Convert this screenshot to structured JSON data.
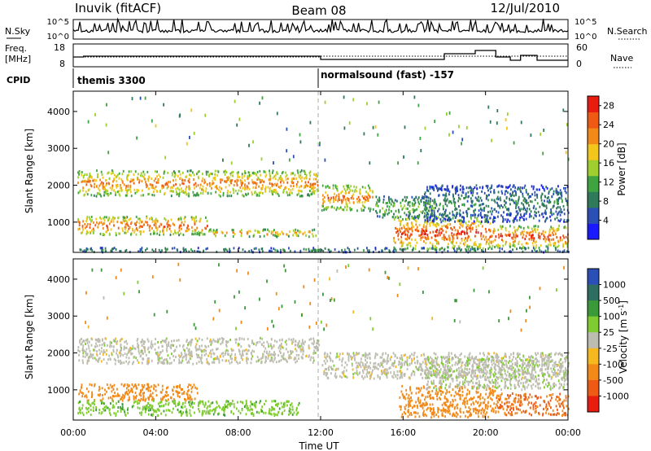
{
  "header": {
    "station": "Inuvik (fitACF)",
    "beam": "Beam 08",
    "date": "12/Jul/2010"
  },
  "noise_panel": {
    "left_label": "N.Sky",
    "left_ticks": [
      "10^5",
      "10^0"
    ],
    "right_label": "N.Search",
    "right_ticks": [
      "10^5",
      "10^0"
    ]
  },
  "freq_panel": {
    "left_label_1": "Freq.",
    "left_label_2": "[MHz]",
    "left_ticks": [
      "18",
      "8"
    ],
    "right_label": "Nave",
    "right_ticks": [
      "60",
      "0"
    ]
  },
  "cpid_panel": {
    "label": "CPID",
    "modes": [
      {
        "name": "themis 3300",
        "start_hour": 0
      },
      {
        "name": "normalsound (fast) -157",
        "start_hour": 12
      }
    ]
  },
  "colors": {
    "power_scale": [
      "#1a1aff",
      "#2a4fb5",
      "#2f7a5a",
      "#3fa33f",
      "#9ecf2e",
      "#f2c61a",
      "#f28a1a",
      "#ee5a14",
      "#e81d10"
    ],
    "velocity_scale": [
      "#2a50b8",
      "#2e6e60",
      "#3a9a3a",
      "#7fcc30",
      "#bcbcb0",
      "#f5b81e",
      "#f28a1a",
      "#ee5a14",
      "#e81d10"
    ]
  },
  "chart_data": [
    {
      "type": "heatmap",
      "name": "power",
      "xlabel": "Time UT",
      "ylabel": "Slant Range [km]",
      "xlim": [
        0,
        24
      ],
      "ylim": [
        180,
        4550
      ],
      "xticks": [
        "00:00",
        "04:00",
        "08:00",
        "12:00",
        "16:00",
        "20:00",
        "00:00"
      ],
      "yticks": [
        1000,
        2000,
        3000,
        4000
      ],
      "colorbar": {
        "label": "Power [dB]",
        "ticks": [
          4,
          8,
          12,
          16,
          20,
          24,
          28
        ],
        "range": [
          0,
          30
        ]
      },
      "bands": [
        {
          "t0": 0.2,
          "t1": 11.9,
          "r0": 1700,
          "r1": 2400,
          "value": 24
        },
        {
          "t0": 0.2,
          "t1": 6.5,
          "r0": 650,
          "r1": 1150,
          "value": 26
        },
        {
          "t0": 6.5,
          "t1": 11.8,
          "r0": 600,
          "r1": 800,
          "value": 22
        },
        {
          "t0": 12.0,
          "t1": 14.5,
          "r0": 1300,
          "r1": 2000,
          "value": 24
        },
        {
          "t0": 14.5,
          "t1": 17.5,
          "r0": 1100,
          "r1": 1700,
          "value": 14
        },
        {
          "t0": 15.5,
          "t1": 20.2,
          "r0": 250,
          "r1": 1150,
          "value": 27
        },
        {
          "t0": 20.2,
          "t1": 24.0,
          "r0": 300,
          "r1": 900,
          "value": 27
        },
        {
          "t0": 17.0,
          "t1": 24.0,
          "r0": 1000,
          "r1": 2000,
          "value": 9
        },
        {
          "t0": 0.2,
          "t1": 24.0,
          "r0": 180,
          "r1": 300,
          "value": 10
        }
      ]
    },
    {
      "type": "heatmap",
      "name": "velocity",
      "xlabel": "Time UT",
      "ylabel": "Slant Range [km]",
      "xlim": [
        0,
        24
      ],
      "ylim": [
        180,
        4550
      ],
      "xticks": [
        "00:00",
        "04:00",
        "08:00",
        "12:00",
        "16:00",
        "20:00",
        "00:00"
      ],
      "yticks": [
        1000,
        2000,
        3000,
        4000
      ],
      "colorbar": {
        "label": "Velocity [m s^-1]",
        "ticks": [
          "1000",
          "500",
          "100",
          "25",
          "-25",
          "-100",
          "-500",
          "-1000"
        ]
      },
      "bands": [
        {
          "t0": 0.2,
          "t1": 11.9,
          "r0": 1700,
          "r1": 2400,
          "value": 0
        },
        {
          "t0": 0.2,
          "t1": 6.0,
          "r0": 700,
          "r1": 1150,
          "value": -300
        },
        {
          "t0": 0.2,
          "t1": 11.0,
          "r0": 300,
          "r1": 700,
          "value": 80
        },
        {
          "t0": 12.0,
          "t1": 24.0,
          "r0": 1300,
          "r1": 2000,
          "value": 0
        },
        {
          "t0": 15.8,
          "t1": 20.5,
          "r0": 250,
          "r1": 1100,
          "value": -400
        },
        {
          "t0": 20.5,
          "t1": 24.0,
          "r0": 300,
          "r1": 900,
          "value": -500
        },
        {
          "t0": 17.0,
          "t1": 24.0,
          "r0": 1000,
          "r1": 1900,
          "value": 10
        }
      ]
    }
  ]
}
